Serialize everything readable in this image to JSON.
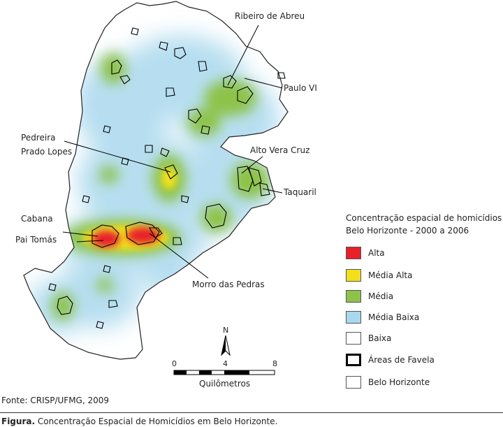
{
  "map_labels": {
    "ribeiro_de_abreu": "Ribeiro de Abreu",
    "paulo_vi": "Paulo VI",
    "pedreira": "Pedreira",
    "prado_lopes": "Prado Lopes",
    "alto_vera_cruz": "Alto Vera Cruz",
    "taquaril": "Taquaril",
    "cabana": "Cabana",
    "pai_tomas": "Pai Tomás",
    "morro_das_pedras": "Morro das Pedras"
  },
  "legend": {
    "title_line1": "Concentração espacial de homicídios",
    "title_line2": "Belo Horizonte - 2000 a 2006",
    "items": [
      {
        "label": "Alta",
        "color": "#e8202a"
      },
      {
        "label": "Média Alta",
        "color": "#f2e01a"
      },
      {
        "label": "Média",
        "color": "#8dc34a"
      },
      {
        "label": "Média Baixa",
        "color": "#a8d9ec"
      },
      {
        "label": "Baixa",
        "color": "#ffffff"
      },
      {
        "label": "Áreas de Favela",
        "color": "#000000"
      },
      {
        "label": "Belo Horizonte",
        "color": "#ffffff"
      }
    ]
  },
  "north_label": "N",
  "scale": {
    "ticks": [
      "0",
      "4",
      "8"
    ],
    "unit": "Quilômetros"
  },
  "source": "Fonte: CRISP/UFMG, 2009",
  "caption": {
    "prefix": "Figura.",
    "text": "Concentração Espacial de Homicídios em Belo Horizonte."
  }
}
